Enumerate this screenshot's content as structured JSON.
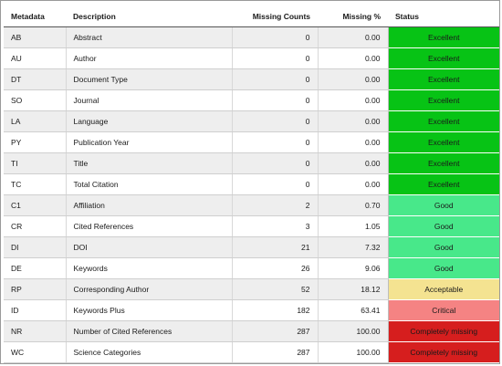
{
  "columns": [
    "Metadata",
    "Description",
    "Missing Counts",
    "Missing %",
    "Status"
  ],
  "status_colors": {
    "Excellent": "#07c315",
    "Good": "#48e88a",
    "Acceptable": "#f4e391",
    "Critical": "#f58383",
    "Completely missing": "#d61e1e"
  },
  "rows": [
    {
      "code": "AB",
      "description": "Abstract",
      "count": "0",
      "percent": "0.00",
      "status": "Excellent"
    },
    {
      "code": "AU",
      "description": "Author",
      "count": "0",
      "percent": "0.00",
      "status": "Excellent"
    },
    {
      "code": "DT",
      "description": "Document Type",
      "count": "0",
      "percent": "0.00",
      "status": "Excellent"
    },
    {
      "code": "SO",
      "description": "Journal",
      "count": "0",
      "percent": "0.00",
      "status": "Excellent"
    },
    {
      "code": "LA",
      "description": "Language",
      "count": "0",
      "percent": "0.00",
      "status": "Excellent"
    },
    {
      "code": "PY",
      "description": "Publication Year",
      "count": "0",
      "percent": "0.00",
      "status": "Excellent"
    },
    {
      "code": "TI",
      "description": "Title",
      "count": "0",
      "percent": "0.00",
      "status": "Excellent"
    },
    {
      "code": "TC",
      "description": "Total Citation",
      "count": "0",
      "percent": "0.00",
      "status": "Excellent"
    },
    {
      "code": "C1",
      "description": "Affiliation",
      "count": "2",
      "percent": "0.70",
      "status": "Good"
    },
    {
      "code": "CR",
      "description": "Cited References",
      "count": "3",
      "percent": "1.05",
      "status": "Good"
    },
    {
      "code": "DI",
      "description": "DOI",
      "count": "21",
      "percent": "7.32",
      "status": "Good"
    },
    {
      "code": "DE",
      "description": "Keywords",
      "count": "26",
      "percent": "9.06",
      "status": "Good"
    },
    {
      "code": "RP",
      "description": "Corresponding Author",
      "count": "52",
      "percent": "18.12",
      "status": "Acceptable"
    },
    {
      "code": "ID",
      "description": "Keywords Plus",
      "count": "182",
      "percent": "63.41",
      "status": "Critical"
    },
    {
      "code": "NR",
      "description": "Number of Cited References",
      "count": "287",
      "percent": "100.00",
      "status": "Completely missing"
    },
    {
      "code": "WC",
      "description": "Science Categories",
      "count": "287",
      "percent": "100.00",
      "status": "Completely missing"
    }
  ]
}
